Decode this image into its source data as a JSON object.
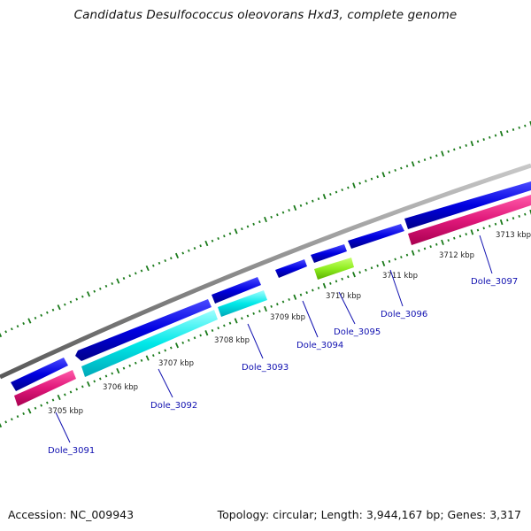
{
  "title": "Candidatus Desulfococcus oleovorans Hxd3, complete genome",
  "footer": {
    "accession": "Accession: NC_009943",
    "summary": "Topology: circular; Length: 3,944,167 bp; Genes: 3,317"
  },
  "colors": {
    "backbone": "#8c8c8c",
    "forward_gene": "#0000e0",
    "forward_gene_alt": "#00e8e8",
    "reverse_gene": "#e0187a",
    "reverse_gene_alt": "#90ee20",
    "tick": "#1a7a1a",
    "label": "#1010b0"
  },
  "scale_labels": [
    "3705 kbp",
    "3706 kbp",
    "3707 kbp",
    "3708 kbp",
    "3709 kbp",
    "3710 kbp",
    "3711 kbp",
    "3712 kbp",
    "3713 kbp"
  ],
  "genes": [
    {
      "name": "Dole_3091"
    },
    {
      "name": "Dole_3092"
    },
    {
      "name": "Dole_3093"
    },
    {
      "name": "Dole_3094"
    },
    {
      "name": "Dole_3095"
    },
    {
      "name": "Dole_3096"
    },
    {
      "name": "Dole_3097"
    }
  ]
}
